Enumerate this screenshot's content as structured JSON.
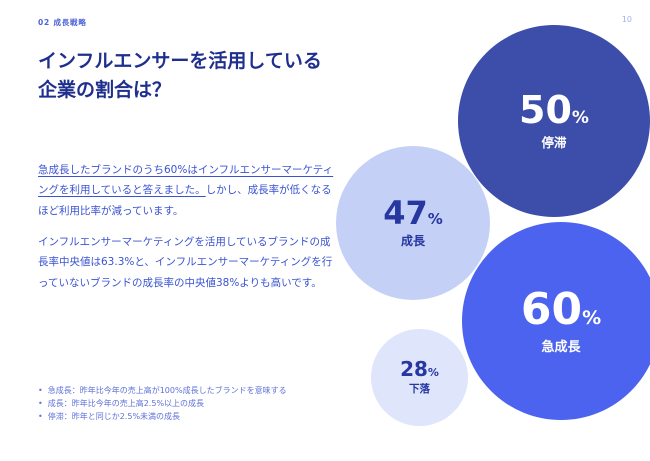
{
  "meta": {
    "eyebrow": "02 成長戦略",
    "page_number": "10"
  },
  "header": {
    "title_line1": "インフルエンサーを活用している",
    "title_line2": "企業の割合は？"
  },
  "body": {
    "para1_underline": "急成長したブランドのうち60%はインフルエンサーマーケティングを利用していると答えました。",
    "para1_rest": "しかし、成長率が低くなるほど利用比率が減っています。",
    "para2": "インフルエンサーマーケティングを活用しているブランドの成長率中央値は63.3%と、インフルエンサーマーケティングを行っていないブランドの成長率の中央値38%よりも高いです。"
  },
  "footnotes": {
    "items": [
      {
        "bullet": "•",
        "text": "急成長：昨年比今年の売上高が100%成長したブランドを意味する"
      },
      {
        "bullet": "•",
        "text": "成長：昨年比今年の売上高2.5%以上の成長"
      },
      {
        "bullet": "•",
        "text": "停滞：昨年と同じか2.5%未満の成長"
      }
    ]
  },
  "chart_data": {
    "type": "bubble",
    "title": "インフルエンサーを活用している企業の割合",
    "legend_position": "none",
    "series": [
      {
        "label": "停滞",
        "value": 50,
        "unit": "%",
        "color": "#3c4daa",
        "text_color": "#ffffff"
      },
      {
        "label": "成長",
        "value": 47,
        "unit": "%",
        "color": "#c5d0f7",
        "text_color": "#2637a0"
      },
      {
        "label": "急成長",
        "value": 60,
        "unit": "%",
        "color": "#4b63ee",
        "text_color": "#ffffff"
      },
      {
        "label": "下落",
        "value": 28,
        "unit": "%",
        "color": "#dfe6fc",
        "text_color": "#2637a0"
      }
    ]
  }
}
